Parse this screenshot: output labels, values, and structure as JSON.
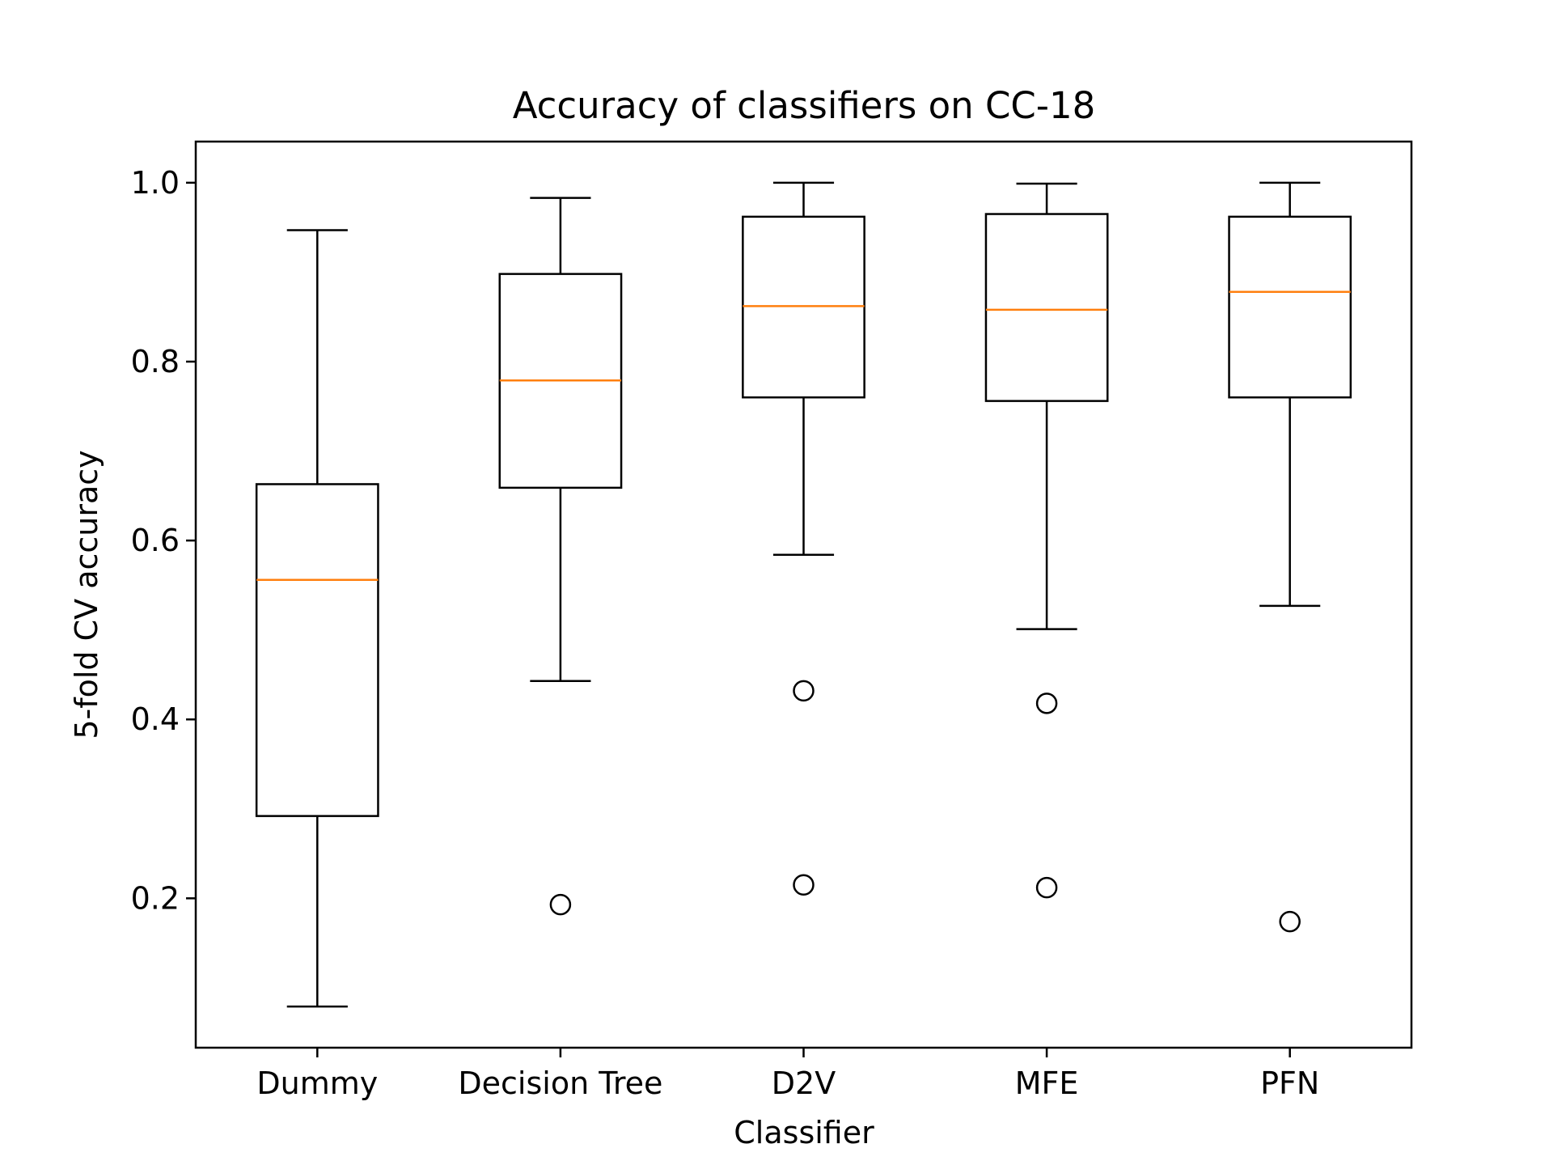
{
  "chart_data": {
    "type": "box",
    "title": "Accuracy of classifiers on CC-18",
    "xlabel": "Classifier",
    "ylabel": "5-fold CV accuracy",
    "ylim": [
      0.033,
      1.046
    ],
    "yticks": [
      0.2,
      0.4,
      0.6,
      0.8,
      1.0
    ],
    "ytick_labels": [
      "0.2",
      "0.4",
      "0.6",
      "0.8",
      "1.0"
    ],
    "grid": false,
    "categories": [
      "Dummy",
      "Decision Tree",
      "D2V",
      "MFE",
      "PFN"
    ],
    "boxes": [
      {
        "name": "Dummy",
        "whisker_low": 0.079,
        "q1": 0.292,
        "median": 0.556,
        "q3": 0.663,
        "whisker_high": 0.947,
        "outliers": []
      },
      {
        "name": "Decision Tree",
        "whisker_low": 0.443,
        "q1": 0.659,
        "median": 0.779,
        "q3": 0.898,
        "whisker_high": 0.983,
        "outliers": [
          0.193
        ]
      },
      {
        "name": "D2V",
        "whisker_low": 0.584,
        "q1": 0.76,
        "median": 0.862,
        "q3": 0.962,
        "whisker_high": 1.0,
        "outliers": [
          0.432,
          0.215
        ]
      },
      {
        "name": "MFE",
        "whisker_low": 0.501,
        "q1": 0.756,
        "median": 0.858,
        "q3": 0.965,
        "whisker_high": 0.999,
        "outliers": [
          0.418,
          0.212
        ]
      },
      {
        "name": "PFN",
        "whisker_low": 0.527,
        "q1": 0.76,
        "median": 0.878,
        "q3": 0.962,
        "whisker_high": 1.0,
        "outliers": [
          0.174
        ]
      }
    ],
    "colors": {
      "box": "#000000",
      "median": "#ff7f0e",
      "background": "#ffffff"
    }
  }
}
